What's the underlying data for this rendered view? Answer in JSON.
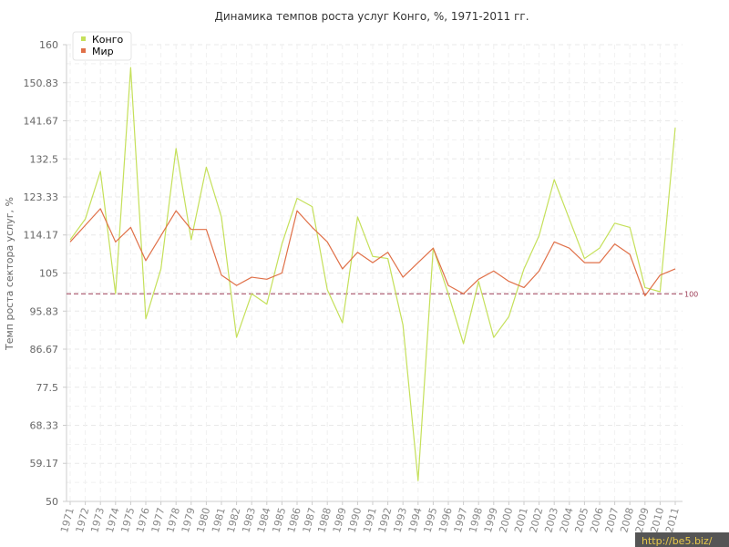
{
  "chart_data": {
    "type": "line",
    "title": "Динамика темпов роста услуг Конго, %, 1971-2011 гг.",
    "xlabel": "",
    "ylabel": "Темп роста сектора услуг, %",
    "ylim": [
      50,
      160
    ],
    "yticks": [
      "50",
      "59.17",
      "68.33",
      "77.5",
      "86.67",
      "95.83",
      "105",
      "114.17",
      "123.33",
      "132.5",
      "141.67",
      "150.83",
      "160"
    ],
    "categories": [
      "1971",
      "1972",
      "1973",
      "1974",
      "1975",
      "1976",
      "1977",
      "1978",
      "1979",
      "1980",
      "1981",
      "1982",
      "1983",
      "1984",
      "1985",
      "1986",
      "1987",
      "1988",
      "1989",
      "1990",
      "1991",
      "1992",
      "1993",
      "1994",
      "1995",
      "1996",
      "1997",
      "1998",
      "1999",
      "2000",
      "2001",
      "2002",
      "2003",
      "2004",
      "2005",
      "2006",
      "2007",
      "2008",
      "2009",
      "2010",
      "2011"
    ],
    "series": [
      {
        "name": "Конго",
        "color": "#c5e05a",
        "values": [
          113,
          118,
          129.5,
          100,
          154.5,
          94,
          106,
          135,
          113,
          130.5,
          118.5,
          89.5,
          100,
          97.5,
          112,
          123,
          121,
          101,
          93,
          118.5,
          109,
          108.5,
          92.5,
          55,
          111,
          100,
          88,
          103,
          89.5,
          94.5,
          106,
          114,
          127.5,
          118,
          108.5,
          111,
          117,
          116,
          101.5,
          100.5,
          140
        ]
      },
      {
        "name": "Мир",
        "color": "#e07048",
        "values": [
          112.5,
          116.5,
          120.5,
          112.5,
          116,
          108,
          114,
          120,
          115.5,
          115.5,
          104.5,
          102,
          104,
          103.5,
          105,
          120,
          116,
          112.5,
          106,
          110,
          107.5,
          110,
          104,
          107.5,
          111,
          102,
          100,
          103.5,
          105.5,
          103,
          101.5,
          105.5,
          112.5,
          111,
          107.5,
          107.5,
          112,
          109.5,
          99.5,
          104.5,
          106
        ]
      }
    ],
    "reference_line": {
      "value": 100,
      "label": "100",
      "color": "#9c3b55"
    },
    "legend": "top-left",
    "grid": true
  },
  "watermark": "http://be5.biz/"
}
